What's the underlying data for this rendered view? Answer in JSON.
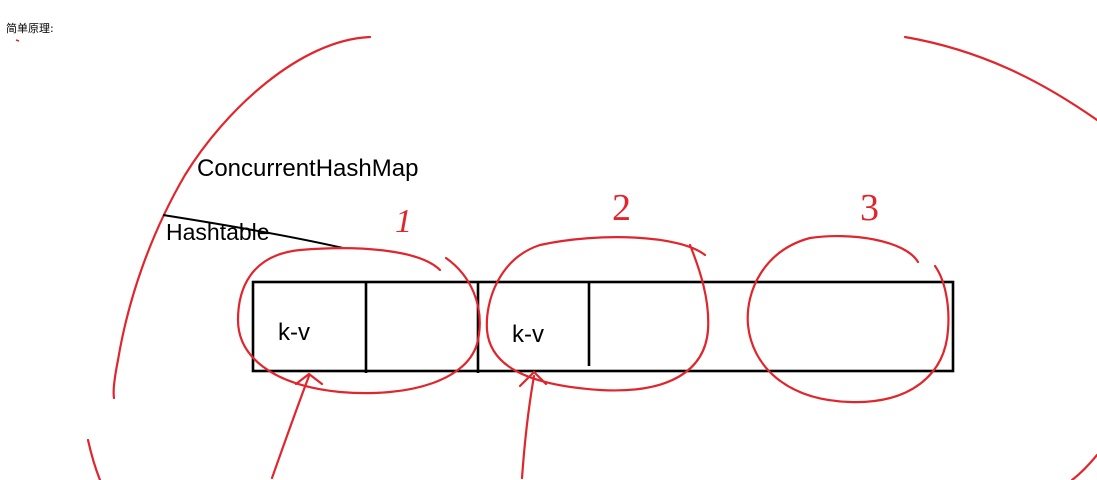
{
  "caption": "简单原理:",
  "labels": {
    "concurrent_hash_map": "ConcurrentHashMap",
    "hashtable": "Hashtable",
    "entry_1": "k-v",
    "entry_2": "k-v"
  },
  "segments": [
    "1",
    "2",
    "3"
  ],
  "colors": {
    "ink_red": "#e0262c",
    "ink_black": "#000000",
    "background": "#ffffff"
  }
}
